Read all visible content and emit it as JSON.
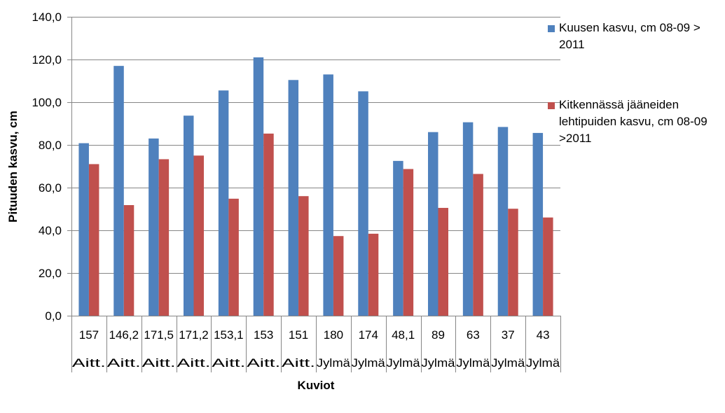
{
  "chart_data": {
    "type": "bar",
    "xlabel": "Kuviot",
    "ylabel": "Pituuden kasvu, cm",
    "ylim": [
      0,
      140
    ],
    "yticks": [
      "0,0",
      "20,0",
      "40,0",
      "60,0",
      "80,0",
      "100,0",
      "120,0",
      "140,0"
    ],
    "grid": true,
    "legend_position": "right",
    "categories": [
      {
        "code": "157",
        "group": "Aitt."
      },
      {
        "code": "146,2",
        "group": "Aitt."
      },
      {
        "code": "171,5",
        "group": "Aitt."
      },
      {
        "code": "171,2",
        "group": "Aitt."
      },
      {
        "code": "153,1",
        "group": "Aitt."
      },
      {
        "code": "153",
        "group": "Aitt."
      },
      {
        "code": "151",
        "group": "Aitt."
      },
      {
        "code": "180",
        "group": "Jylmä"
      },
      {
        "code": "174",
        "group": "Jylmä"
      },
      {
        "code": "48,1",
        "group": "Jylmä"
      },
      {
        "code": "89",
        "group": "Jylmä"
      },
      {
        "code": "63",
        "group": "Jylmä"
      },
      {
        "code": "37",
        "group": "Jylmä"
      },
      {
        "code": "43",
        "group": "Jylmä"
      }
    ],
    "series": [
      {
        "name": "Kuusen kasvu, cm 08-09 > 2011",
        "color": "#4f81bd",
        "values": [
          80.8,
          117.0,
          83.0,
          93.7,
          105.5,
          121.0,
          110.4,
          113.0,
          105.1,
          72.5,
          86.0,
          90.6,
          88.4,
          85.6
        ]
      },
      {
        "name": "Kitkennässä jääneiden lehtipuiden kasvu, cm 08-09 >2011",
        "color": "#c0504d",
        "values": [
          71.0,
          51.8,
          73.3,
          75.0,
          54.8,
          85.3,
          56.0,
          37.3,
          38.4,
          68.7,
          50.5,
          66.4,
          50.1,
          46.0
        ]
      }
    ]
  }
}
